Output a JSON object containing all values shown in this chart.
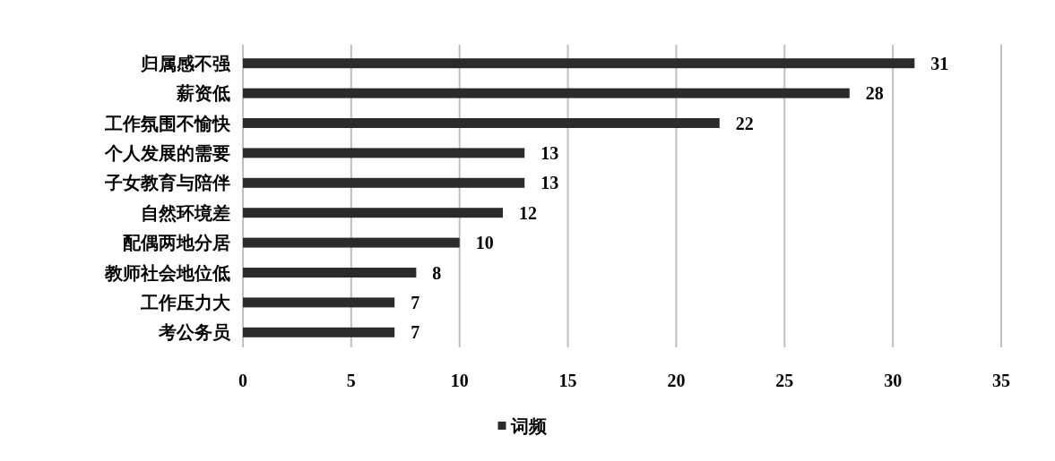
{
  "chart_data": {
    "type": "bar",
    "orientation": "horizontal",
    "categories": [
      "归属感不强",
      "薪资低",
      "工作氛围不愉快",
      "个人发展的需要",
      "子女教育与陪伴",
      "自然环境差",
      "配偶两地分居",
      "教师社会地位低",
      "工作压力大",
      "考公务员"
    ],
    "series": [
      {
        "name": "词频",
        "color": "#2b2b2b",
        "values": [
          31,
          28,
          22,
          13,
          13,
          12,
          10,
          8,
          7,
          7
        ]
      }
    ],
    "xlim": [
      0,
      35
    ],
    "xticks": [
      0,
      5,
      10,
      15,
      20,
      25,
      30,
      35
    ],
    "grid": "x",
    "legend": "bottom",
    "data_labels": true
  }
}
